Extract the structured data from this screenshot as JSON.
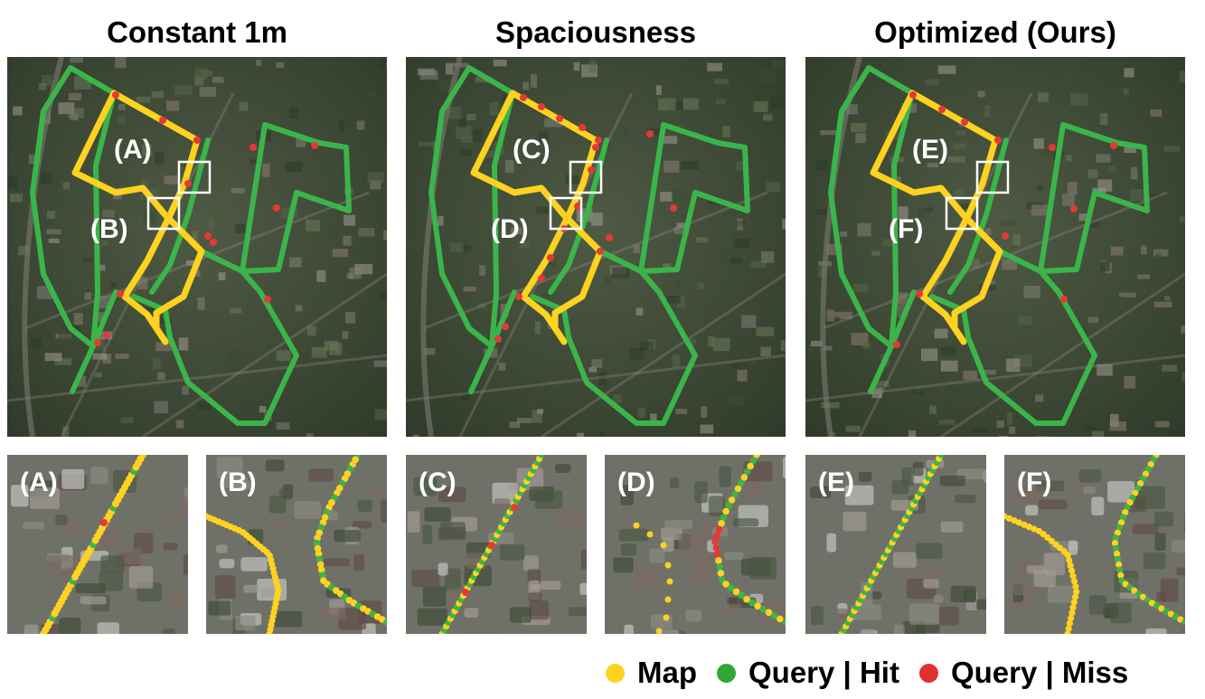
{
  "columns": [
    {
      "title": "Constant 1m",
      "labels": [
        "(A)",
        "(B)"
      ]
    },
    {
      "title": "Spaciousness",
      "labels": [
        "(C)",
        "(D)"
      ]
    },
    {
      "title": "Optimized (Ours)",
      "labels": [
        "(E)",
        "(F)"
      ]
    }
  ],
  "legend": [
    {
      "label": "Map",
      "color": "#ffd21f"
    },
    {
      "label": "Query | Hit",
      "color": "#2ea836"
    },
    {
      "label": "Query | Miss",
      "color": "#e03131"
    }
  ],
  "colors": {
    "map": "#ffd21f",
    "hit": "#3ab54a",
    "miss": "#e53935"
  }
}
